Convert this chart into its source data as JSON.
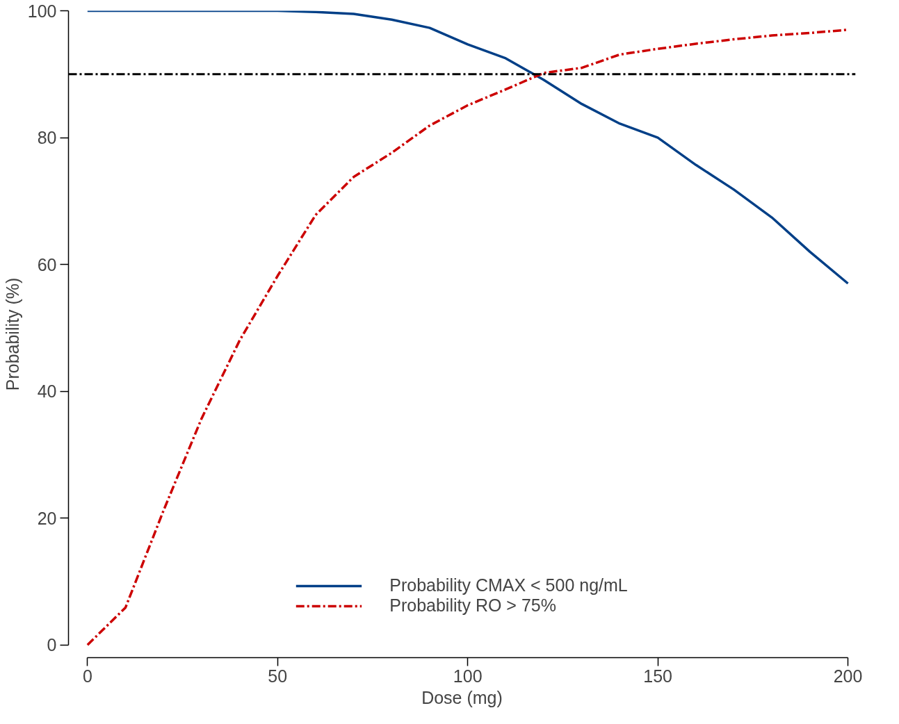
{
  "chart_data": {
    "type": "line",
    "xlabel": "Dose (mg)",
    "ylabel": "Probability (%)",
    "x": [
      0,
      10,
      20,
      30,
      40,
      50,
      60,
      70,
      80,
      90,
      100,
      110,
      120,
      130,
      140,
      150,
      160,
      170,
      180,
      190,
      200
    ],
    "series": [
      {
        "name": "Probability CMAX < 500 ng/mL",
        "color": "#003f87",
        "line_style": "solid",
        "values": [
          100,
          100,
          100,
          100,
          100,
          100,
          99.8,
          99.5,
          98.6,
          97.3,
          94.7,
          92.5,
          89.1,
          85.3,
          82.2,
          80.0,
          75.7,
          71.8,
          67.4,
          62.0,
          57.0
        ]
      },
      {
        "name": "Probability RO > 75%",
        "color": "#cc0000",
        "line_style": "dashdot",
        "values": [
          0,
          5.9,
          21.2,
          35.7,
          48.0,
          58.2,
          67.8,
          73.8,
          77.6,
          81.9,
          85.1,
          87.6,
          90.2,
          91.0,
          93.1,
          94.0,
          94.8,
          95.5,
          96.1,
          96.5,
          97.0
        ]
      }
    ],
    "ref_lines": [
      {
        "axis": "y",
        "value": 90,
        "color": "#000000",
        "line_style": "dashdot"
      }
    ],
    "xlim": [
      -5,
      202
    ],
    "ylim": [
      -2,
      100
    ],
    "xticks": [
      0,
      50,
      100,
      150,
      200
    ],
    "yticks": [
      0,
      20,
      40,
      60,
      80,
      100
    ],
    "grid": false,
    "legend": "bottom",
    "marker": "none"
  }
}
